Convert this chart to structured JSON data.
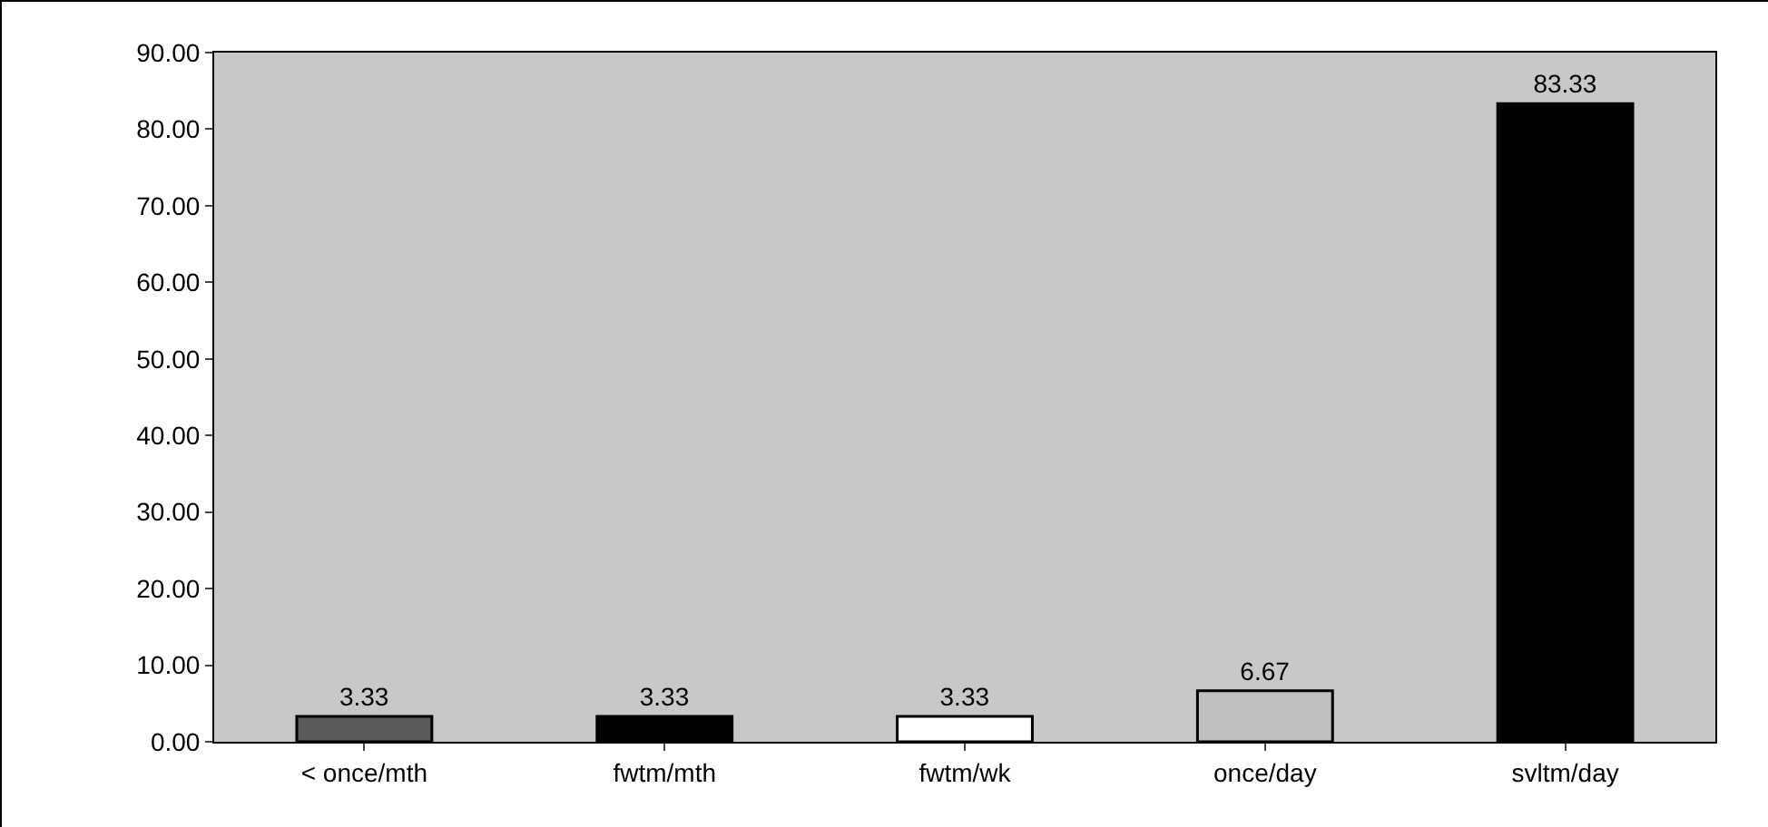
{
  "chart_data": {
    "type": "bar",
    "categories": [
      "< once/mth",
      "fwtm/mth",
      "fwtm/wk",
      "once/day",
      "svltm/day"
    ],
    "values": [
      3.33,
      3.33,
      3.33,
      6.67,
      83.33
    ],
    "colors": [
      "#5a5a5a",
      "#000000",
      "#ffffff",
      "#c0c0c0",
      "#000000"
    ],
    "value_labels": [
      "3.33",
      "3.33",
      "3.33",
      "6.67",
      "83.33"
    ],
    "ylim": [
      0,
      90
    ],
    "yticks": [
      {
        "value": 0,
        "label": "0.00"
      },
      {
        "value": 10,
        "label": "10.00"
      },
      {
        "value": 20,
        "label": "20.00"
      },
      {
        "value": 30,
        "label": "30.00"
      },
      {
        "value": 40,
        "label": "40.00"
      },
      {
        "value": 50,
        "label": "50.00"
      },
      {
        "value": 60,
        "label": "60.00"
      },
      {
        "value": 70,
        "label": "70.00"
      },
      {
        "value": 80,
        "label": "80.00"
      },
      {
        "value": 90,
        "label": "90.00"
      }
    ],
    "grid": false,
    "legend": false
  }
}
